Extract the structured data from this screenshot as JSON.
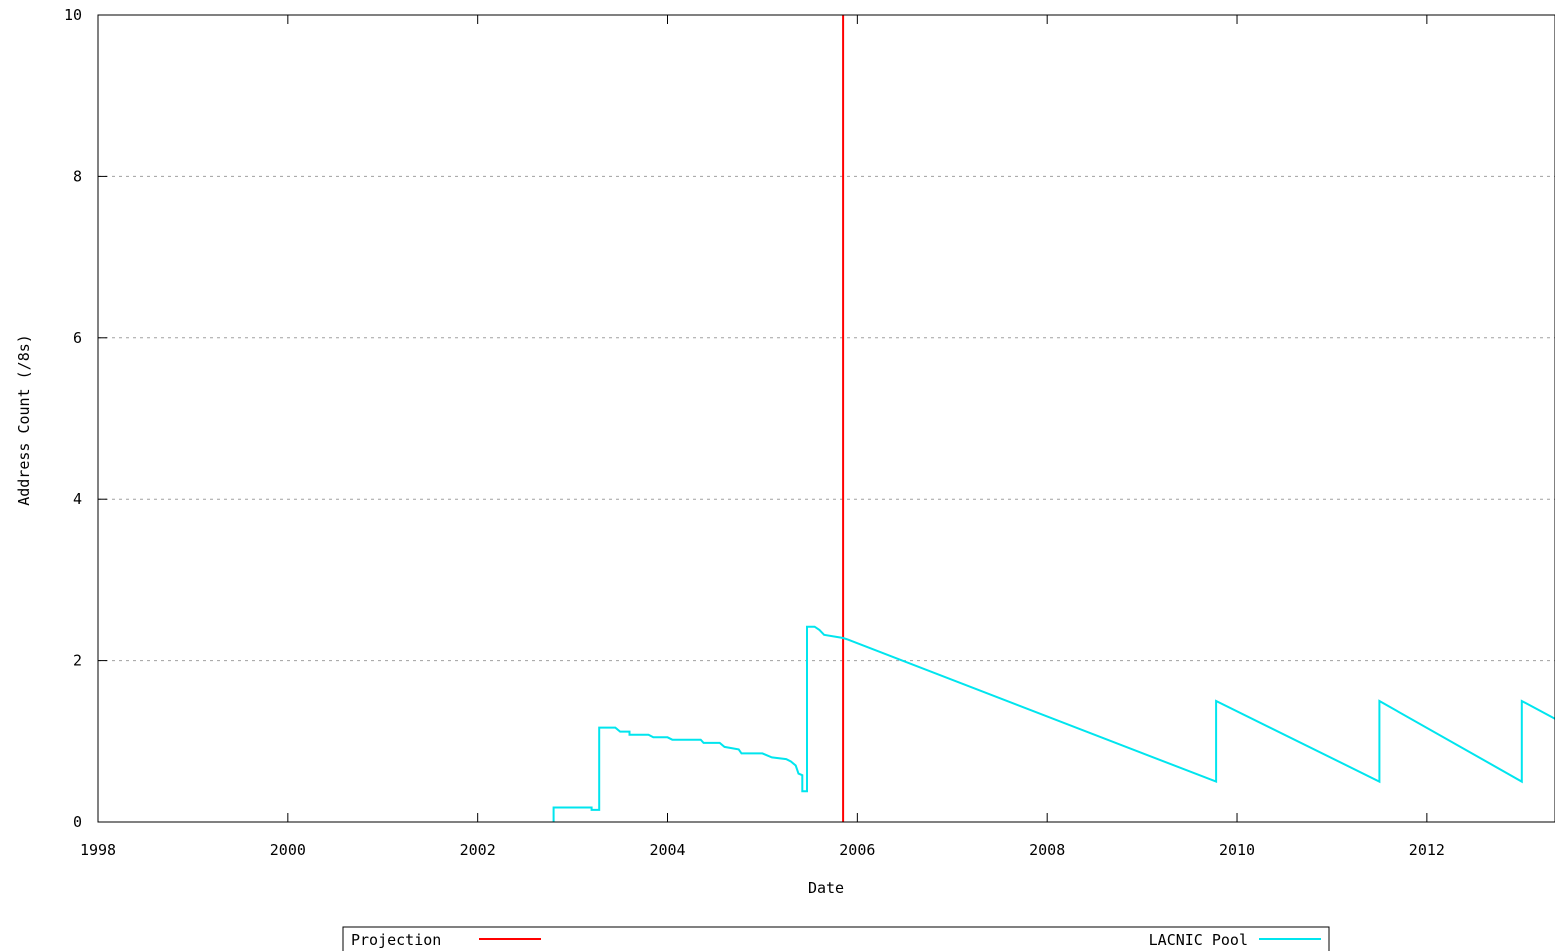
{
  "chart_data": {
    "type": "line",
    "title": "",
    "xlabel": "Date",
    "ylabel": "Address Count (/8s)",
    "xlim": [
      1998,
      2013.35
    ],
    "ylim": [
      0,
      10
    ],
    "x_ticks": [
      1998,
      2000,
      2002,
      2004,
      2006,
      2008,
      2010,
      2012
    ],
    "y_ticks": [
      0,
      2,
      4,
      6,
      8,
      10
    ],
    "x_tick_labels": [
      "1998",
      "2000",
      "2002",
      "2004",
      "2006",
      "2008",
      "2010",
      "2012"
    ],
    "y_tick_labels": [
      "0",
      "2",
      "4",
      "6",
      "8",
      "10"
    ],
    "grid": "horizontal-dashed",
    "legend_placement": "bottom",
    "series": [
      {
        "name": "Projection",
        "color": "#ff0000",
        "points": [
          [
            2005.85,
            0
          ],
          [
            2005.85,
            10
          ]
        ]
      },
      {
        "name": "LACNIC Pool",
        "color": "#00e5ee",
        "points": [
          [
            2002.8,
            0
          ],
          [
            2002.8,
            0.18
          ],
          [
            2003.2,
            0.18
          ],
          [
            2003.2,
            0.15
          ],
          [
            2003.28,
            0.15
          ],
          [
            2003.28,
            1.17
          ],
          [
            2003.45,
            1.17
          ],
          [
            2003.5,
            1.12
          ],
          [
            2003.6,
            1.12
          ],
          [
            2003.6,
            1.08
          ],
          [
            2003.8,
            1.08
          ],
          [
            2003.85,
            1.05
          ],
          [
            2004.0,
            1.05
          ],
          [
            2004.05,
            1.02
          ],
          [
            2004.35,
            1.02
          ],
          [
            2004.38,
            0.98
          ],
          [
            2004.55,
            0.98
          ],
          [
            2004.6,
            0.93
          ],
          [
            2004.75,
            0.9
          ],
          [
            2004.78,
            0.85
          ],
          [
            2005.0,
            0.85
          ],
          [
            2005.1,
            0.8
          ],
          [
            2005.25,
            0.78
          ],
          [
            2005.3,
            0.75
          ],
          [
            2005.35,
            0.7
          ],
          [
            2005.38,
            0.6
          ],
          [
            2005.42,
            0.58
          ],
          [
            2005.42,
            0.38
          ],
          [
            2005.47,
            0.38
          ],
          [
            2005.47,
            2.42
          ],
          [
            2005.55,
            2.42
          ],
          [
            2005.6,
            2.38
          ],
          [
            2005.65,
            2.32
          ],
          [
            2005.85,
            2.28
          ],
          [
            2005.9,
            2.26
          ],
          [
            2009.78,
            0.5
          ],
          [
            2009.78,
            1.5
          ],
          [
            2011.5,
            0.5
          ],
          [
            2011.5,
            1.5
          ],
          [
            2013.0,
            0.5
          ],
          [
            2013.0,
            1.5
          ],
          [
            2013.35,
            1.28
          ]
        ]
      }
    ]
  }
}
